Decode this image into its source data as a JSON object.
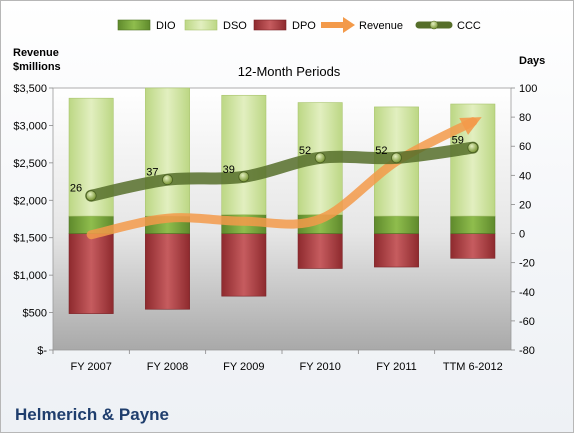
{
  "chart_data": {
    "type": "bar",
    "title": "12-Month Periods",
    "categories": [
      "FY 2007",
      "FY 2008",
      "FY 2009",
      "FY 2010",
      "FY 2011",
      "TTM 6-2012"
    ],
    "left_axis": {
      "label_line1": "Revenue",
      "label_line2": "$millions",
      "ylim": [
        0,
        3500
      ],
      "ticks": [
        "$-",
        "$500",
        "$1,000",
        "$1,500",
        "$2,000",
        "$2,500",
        "$3,000",
        "$3,500"
      ]
    },
    "right_axis": {
      "label": "Days",
      "ylim": [
        -80,
        100
      ],
      "ticks": [
        "-80",
        "-60",
        "-40",
        "-20",
        "0",
        "20",
        "40",
        "60",
        "80",
        "100"
      ]
    },
    "series": [
      {
        "name": "DIO",
        "axis": "days",
        "values": [
          12,
          12,
          13,
          13,
          12,
          12
        ],
        "color": "#76a33a"
      },
      {
        "name": "DSO",
        "axis": "days",
        "values": [
          81,
          88,
          82,
          77,
          75,
          77
        ],
        "color": "#cde29a"
      },
      {
        "name": "DPO",
        "axis": "days",
        "values": [
          -55,
          -52,
          -43,
          -24,
          -23,
          -17
        ],
        "color": "#b43a3e"
      },
      {
        "name": "Revenue",
        "axis": "revenue",
        "values": [
          1540,
          1760,
          1720,
          1750,
          2520,
          3050
        ],
        "color": "#f39a4a"
      },
      {
        "name": "CCC",
        "axis": "days",
        "values": [
          26,
          37,
          39,
          52,
          52,
          59
        ],
        "color": "#566e2a",
        "labels": [
          "26",
          "37",
          "39",
          "52",
          "52",
          "59"
        ]
      }
    ],
    "legend_position": "top",
    "grid": false
  },
  "footer": {
    "company": "Helmerich & Payne"
  }
}
